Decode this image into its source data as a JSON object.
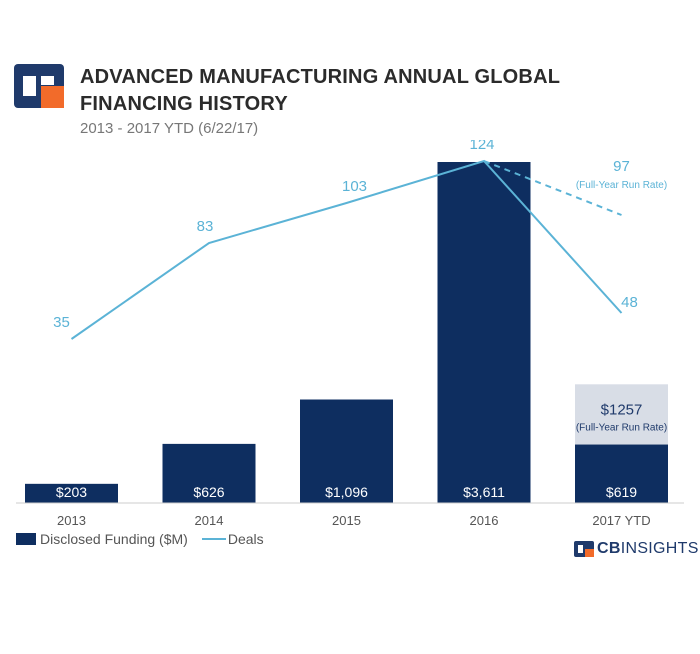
{
  "header": {
    "title": "ADVANCED MANUFACTURING ANNUAL GLOBAL FINANCING HISTORY",
    "subtitle": "2013 - 2017 YTD (6/22/17)"
  },
  "chart_data": {
    "type": "bar",
    "categories": [
      "2013",
      "2014",
      "2015",
      "2016",
      "2017 YTD"
    ],
    "series": [
      {
        "name": "Disclosed Funding ($M)",
        "type": "bar",
        "values": [
          203,
          626,
          1096,
          3611,
          619
        ],
        "labels": [
          "$203",
          "$626",
          "$1,096",
          "$3,611",
          "$619"
        ]
      },
      {
        "name": "Deals",
        "type": "line",
        "values": [
          35,
          83,
          103,
          124,
          48
        ],
        "labels": [
          "35",
          "83",
          "103",
          "124",
          "48"
        ]
      }
    ],
    "projections": {
      "funding": {
        "category": "2017 YTD",
        "value": 1257,
        "label": "$1257",
        "note": "(Full-Year Run Rate)"
      },
      "deals": {
        "category": "2017 YTD",
        "value": 97,
        "label": "97",
        "note": "(Full-Year Run Rate)"
      }
    },
    "colors": {
      "bar": "#0e2e60",
      "line": "#5bb3d6",
      "projection_fill": "#d8dde6"
    },
    "legend_position": "bottom-left"
  },
  "brand": {
    "strong": "CB",
    "thin": "INSIGHTS"
  }
}
